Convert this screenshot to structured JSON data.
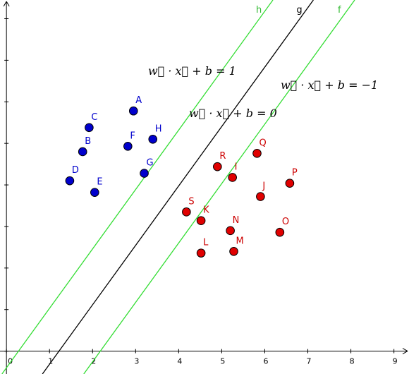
{
  "chart_data": {
    "type": "scatter",
    "title": "",
    "xlabel": "",
    "ylabel": "",
    "xlim": [
      -0.15,
      9.35
    ],
    "ylim": [
      -0.55,
      8.45
    ],
    "x_ticks": [
      0,
      1,
      2,
      3,
      4,
      5,
      6,
      7,
      8,
      9
    ],
    "y_ticks": [
      0,
      1,
      2,
      3,
      4,
      5,
      6,
      7,
      8
    ],
    "colors": {
      "blue_points": "#0000cc",
      "red_points": "#e00000",
      "margin_lines": "#33dd33",
      "boundary_line": "#000000",
      "blue_labels": "#0000cc",
      "red_labels": "#cc0000"
    },
    "series": [
      {
        "points": [
          {
            "label": "A",
            "x": 2.95,
            "y": 5.78
          },
          {
            "label": "B",
            "x": 1.77,
            "y": 4.8
          },
          {
            "label": "C",
            "x": 1.92,
            "y": 5.38
          },
          {
            "label": "D",
            "x": 1.47,
            "y": 4.1
          },
          {
            "label": "E",
            "x": 2.05,
            "y": 3.82
          },
          {
            "label": "F",
            "x": 2.82,
            "y": 4.93
          },
          {
            "label": "G",
            "x": 3.2,
            "y": 4.28
          },
          {
            "label": "H",
            "x": 3.4,
            "y": 5.1
          }
        ]
      },
      {
        "points": [
          {
            "label": "I",
            "x": 5.25,
            "y": 4.18
          },
          {
            "label": "J",
            "x": 5.9,
            "y": 3.72
          },
          {
            "label": "K",
            "x": 4.52,
            "y": 3.14
          },
          {
            "label": "L",
            "x": 4.52,
            "y": 2.36
          },
          {
            "label": "M",
            "x": 5.28,
            "y": 2.4
          },
          {
            "label": "N",
            "x": 5.2,
            "y": 2.9
          },
          {
            "label": "O",
            "x": 6.35,
            "y": 2.86
          },
          {
            "label": "P",
            "x": 6.58,
            "y": 4.04
          },
          {
            "label": "Q",
            "x": 5.82,
            "y": 4.76
          },
          {
            "label": "R",
            "x": 4.9,
            "y": 4.44
          },
          {
            "label": "S",
            "x": 4.18,
            "y": 3.35
          }
        ]
      }
    ],
    "lines": [
      {
        "label": "h",
        "x_at_y0": 0.28,
        "slope": 1.43
      },
      {
        "label": "g",
        "x_at_y0": 1.22,
        "slope": 1.43
      },
      {
        "label": "f",
        "x_at_y0": 2.18,
        "slope": 1.43
      }
    ],
    "equations": [
      {
        "id": "plus",
        "text": "w⃗ · x⃗ + b = 1"
      },
      {
        "id": "zero",
        "text": "w⃗ · x⃗ + b = 0"
      },
      {
        "id": "minus",
        "text": "w⃗ · x⃗ + b = −1"
      }
    ]
  }
}
